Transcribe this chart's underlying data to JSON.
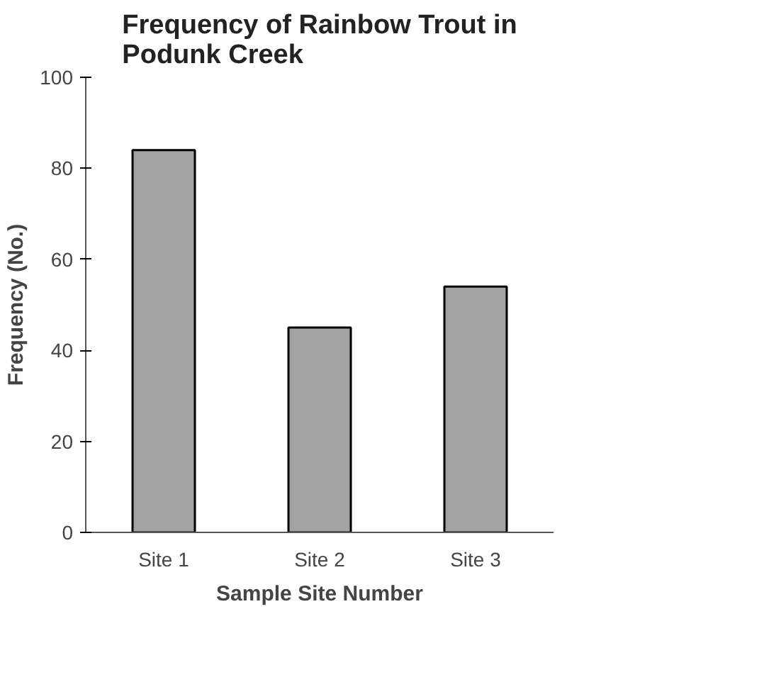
{
  "chart_data": {
    "type": "bar",
    "title": "Frequency of Rainbow Trout in\nPodunk Creek",
    "xlabel": "Sample Site Number",
    "ylabel": "Frequency (No.)",
    "categories": [
      "Site 1",
      "Site 2",
      "Site 3"
    ],
    "values": [
      84,
      45,
      54
    ],
    "color": "#a3a3a3",
    "ylim": [
      0,
      100
    ],
    "yticks": [
      0,
      20,
      40,
      60,
      80,
      100
    ],
    "grid": false
  }
}
